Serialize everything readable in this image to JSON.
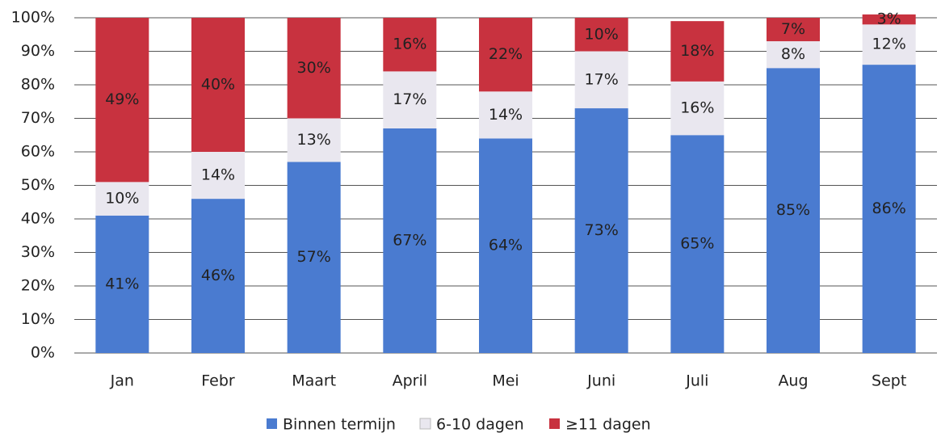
{
  "chart_data": {
    "type": "stacked_bar",
    "categories": [
      "Jan",
      "Febr",
      "Maart",
      "April",
      "Mei",
      "Juni",
      "Juli",
      "Aug",
      "Sept"
    ],
    "series": [
      {
        "name": "Binnen termijn",
        "color": "#4a7bd0",
        "values": [
          41,
          46,
          57,
          67,
          64,
          73,
          65,
          85,
          86
        ],
        "value_labels": [
          "41%",
          "46%",
          "57%",
          "67%",
          "64%",
          "73%",
          "65%",
          "85%",
          "86%"
        ]
      },
      {
        "name": "6-10 dagen",
        "color": "#e9e7ef",
        "values": [
          10,
          14,
          13,
          17,
          14,
          17,
          16,
          8,
          12
        ],
        "value_labels": [
          "10%",
          "14%",
          "13%",
          "17%",
          "14%",
          "17%",
          "16%",
          "8%",
          "12%"
        ]
      },
      {
        "name": "≥11 dagen",
        "color": "#c8323f",
        "values": [
          49,
          40,
          30,
          16,
          22,
          10,
          18,
          7,
          3
        ],
        "value_labels": [
          "49%",
          "40%",
          "30%",
          "16%",
          "22%",
          "10%",
          "18%",
          "7%",
          "3%"
        ]
      }
    ],
    "ylim": [
      0,
      100
    ],
    "yticks": [
      {
        "value": 0,
        "label": "0%"
      },
      {
        "value": 10,
        "label": "10%"
      },
      {
        "value": 20,
        "label": "20%"
      },
      {
        "value": 30,
        "label": "30%"
      },
      {
        "value": 40,
        "label": "40%"
      },
      {
        "value": 50,
        "label": "50%"
      },
      {
        "value": 60,
        "label": "60%"
      },
      {
        "value": 70,
        "label": "70%"
      },
      {
        "value": 80,
        "label": "80%"
      },
      {
        "value": 90,
        "label": "90%"
      },
      {
        "value": 100,
        "label": "100%"
      }
    ],
    "grid": true,
    "legend": "bottom"
  }
}
